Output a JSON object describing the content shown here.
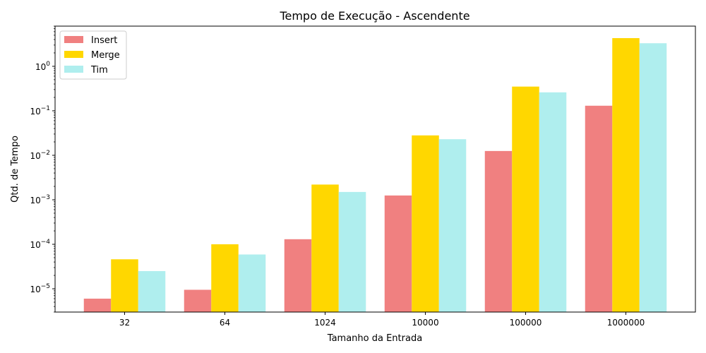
{
  "chart_data": {
    "type": "bar",
    "title": "Tempo de Execução - Ascendente",
    "xlabel": "Tamanho da Entrada",
    "ylabel": "Qtd. de Tempo",
    "yscale": "log",
    "ylim": [
      3e-06,
      8
    ],
    "yticks": [
      {
        "value": 1e-05,
        "base": "10",
        "exp": "−5"
      },
      {
        "value": 0.0001,
        "base": "10",
        "exp": "−4"
      },
      {
        "value": 0.001,
        "base": "10",
        "exp": "−3"
      },
      {
        "value": 0.01,
        "base": "10",
        "exp": "−2"
      },
      {
        "value": 0.1,
        "base": "10",
        "exp": "−1"
      },
      {
        "value": 1,
        "base": "10",
        "exp": "0"
      }
    ],
    "categories": [
      "32",
      "64",
      "1024",
      "10000",
      "100000",
      "1000000"
    ],
    "series": [
      {
        "name": "Insert",
        "color": "#f08080",
        "values": [
          6e-06,
          9.5e-06,
          0.00013,
          0.00125,
          0.0125,
          0.13
        ]
      },
      {
        "name": "Merge",
        "color": "#ffd700",
        "values": [
          4.6e-05,
          0.0001,
          0.0022,
          0.028,
          0.35,
          4.3
        ]
      },
      {
        "name": "Tim",
        "color": "#afeeee",
        "values": [
          2.5e-05,
          5.9e-05,
          0.0015,
          0.023,
          0.26,
          3.3
        ]
      }
    ],
    "legend_position": "top-left",
    "grid": false
  }
}
